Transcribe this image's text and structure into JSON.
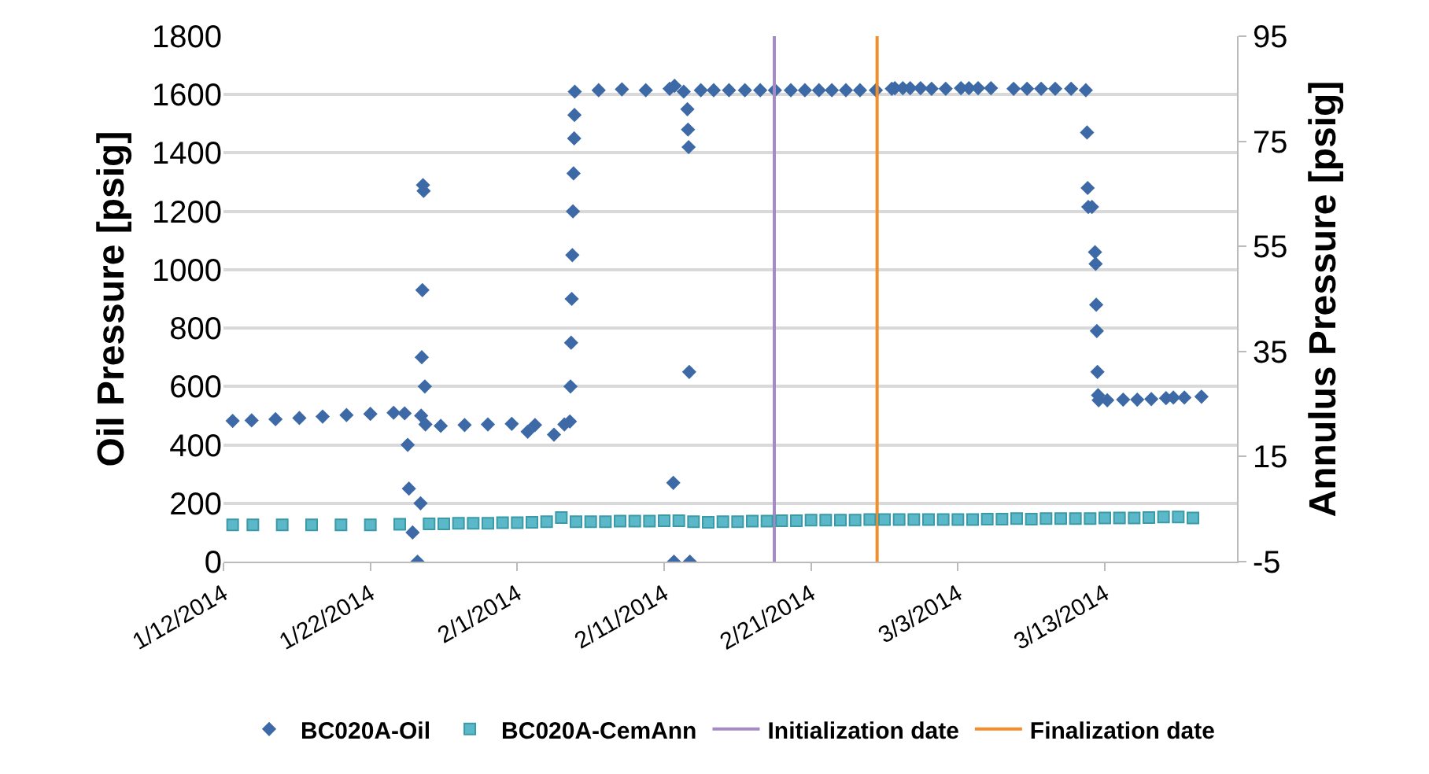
{
  "chart_data": {
    "type": "scatter",
    "ylabel": "Oil Pressure [psig]",
    "y2label": "Annulus Pressure [psig]",
    "xlim": [
      "2014-01-12",
      "2014-03-22"
    ],
    "xticks": [
      {
        "value": "2014-01-12",
        "label": "1/12/2014"
      },
      {
        "value": "2014-01-22",
        "label": "1/22/2014"
      },
      {
        "value": "2014-02-01",
        "label": "2/1/2014"
      },
      {
        "value": "2014-02-11",
        "label": "2/11/2014"
      },
      {
        "value": "2014-02-21",
        "label": "2/21/2014"
      },
      {
        "value": "2014-03-03",
        "label": "3/3/2014"
      },
      {
        "value": "2014-03-13",
        "label": "3/13/2014"
      }
    ],
    "ylim": [
      0,
      1800
    ],
    "yticks": [
      0,
      200,
      400,
      600,
      800,
      1000,
      1200,
      1400,
      1600,
      1800
    ],
    "y2lim": [
      -5,
      95
    ],
    "y2ticks": [
      -5,
      15,
      35,
      55,
      75,
      95
    ],
    "grid": "y",
    "legend": "bottom",
    "series": [
      {
        "name": "BC020A-Oil",
        "color": "#3d6aa6",
        "marker": "diamond",
        "x": [
          "2014-01-12T15:00",
          "2014-01-13T22:00",
          "2014-01-15T13:00",
          "2014-01-17T04:00",
          "2014-01-18T18:00",
          "2014-01-20T09:00",
          "2014-01-22T00:00",
          "2014-01-23T14:00",
          "2014-01-24T08:00",
          "2014-01-24T13:00",
          "2014-01-24T15:00",
          "2014-01-24T21:00",
          "2014-01-25T05:00",
          "2014-01-25T10:00",
          "2014-01-25T11:00",
          "2014-01-25T12:00",
          "2014-01-25T13:00",
          "2014-01-25T14:00",
          "2014-01-25T15:00",
          "2014-01-25T17:00",
          "2014-01-25T18:00",
          "2014-01-26T19:00",
          "2014-01-28T10:00",
          "2014-01-30T00:00",
          "2014-01-31T15:00",
          "2014-02-01T17:00",
          "2014-02-02T05:00",
          "2014-02-03T12:00",
          "2014-02-04T05:00",
          "2014-02-04T14:00",
          "2014-02-04T15:00",
          "2014-02-04T16:00",
          "2014-02-04T17:00",
          "2014-02-04T18:00",
          "2014-02-04T19:00",
          "2014-02-04T20:00",
          "2014-02-04T21:00",
          "2014-02-04T21:30",
          "2014-02-04T22:00",
          "2014-02-06T13:00",
          "2014-02-08T03:00",
          "2014-02-09T18:00",
          "2014-02-11T09:00",
          "2014-02-11T15:00",
          "2014-02-11T16:00",
          "2014-02-11T17:00",
          "2014-02-12T08:00",
          "2014-02-12T14:00",
          "2014-02-12T15:00",
          "2014-02-12T16:00",
          "2014-02-12T17:00",
          "2014-02-12T18:00",
          "2014-02-13T12:00",
          "2014-02-14T09:00",
          "2014-02-15T10:00",
          "2014-02-16T12:00",
          "2014-02-17T13:00",
          "2014-02-18T13:00",
          "2014-02-19T15:00",
          "2014-02-20T14:00",
          "2014-02-21T13:00",
          "2014-02-22T10:00",
          "2014-02-23T09:00",
          "2014-02-24T08:00",
          "2014-02-25T10:00",
          "2014-02-26T12:00",
          "2014-02-26T17:00",
          "2014-02-27T06:00",
          "2014-02-27T18:00",
          "2014-02-28T11:00",
          "2014-03-01T05:00",
          "2014-03-02T04:00",
          "2014-03-03T05:00",
          "2014-03-03T18:00",
          "2014-03-04T09:00",
          "2014-03-05T06:00",
          "2014-03-06T19:00",
          "2014-03-07T17:00",
          "2014-03-08T16:00",
          "2014-03-09T15:00",
          "2014-03-10T17:00",
          "2014-03-11T17:00",
          "2014-03-11T19:00",
          "2014-03-11T20:00",
          "2014-03-11T21:00",
          "2014-03-12T03:00",
          "2014-03-12T08:00",
          "2014-03-12T09:00",
          "2014-03-12T10:00",
          "2014-03-12T11:00",
          "2014-03-12T12:00",
          "2014-03-12T13:00",
          "2014-03-12T14:00",
          "2014-03-13T04:00",
          "2014-03-14T06:00",
          "2014-03-15T05:00",
          "2014-03-16T04:00",
          "2014-03-17T04:00",
          "2014-03-17T16:00",
          "2014-03-18T10:00",
          "2014-03-19T14:00"
        ],
        "values": [
          482,
          484,
          488,
          492,
          497,
          502,
          506,
          510,
          508,
          400,
          250,
          100,
          0,
          200,
          500,
          700,
          930,
          1290,
          1270,
          600,
          470,
          465,
          468,
          470,
          472,
          445,
          468,
          435,
          470,
          480,
          600,
          750,
          900,
          1050,
          1200,
          1330,
          1450,
          1530,
          1610,
          1615,
          1618,
          1615,
          1620,
          270,
          0,
          1630,
          1610,
          1550,
          1480,
          1420,
          650,
          0,
          1615,
          1615,
          1615,
          1615,
          1615,
          1615,
          1615,
          1615,
          1615,
          1615,
          1615,
          1615,
          1615,
          1620,
          1622,
          1622,
          1622,
          1622,
          1620,
          1620,
          1622,
          1622,
          1622,
          1622,
          1620,
          1620,
          1620,
          1620,
          1620,
          1615,
          1470,
          1280,
          1215,
          1215,
          1060,
          1020,
          880,
          790,
          650,
          570,
          553,
          553,
          555,
          555,
          557,
          560,
          562,
          562,
          565
        ]
      },
      {
        "name": "BC020A-CemAnn",
        "color": "#5bb8c8",
        "marker": "square",
        "axis": "y2",
        "x": [
          "2014-01-12T15:00",
          "2014-01-14T00:00",
          "2014-01-16T00:00",
          "2014-01-18T00:00",
          "2014-01-20T00:00",
          "2014-01-22T00:00",
          "2014-01-24T00:00",
          "2014-01-26T00:00",
          "2014-01-27T00:00",
          "2014-01-28T00:00",
          "2014-01-29T00:00",
          "2014-01-30T00:00",
          "2014-01-31T00:00",
          "2014-02-01T00:00",
          "2014-02-02T00:00",
          "2014-02-03T00:00",
          "2014-02-04T00:00",
          "2014-02-05T00:00",
          "2014-02-06T00:00",
          "2014-02-07T00:00",
          "2014-02-08T00:00",
          "2014-02-09T00:00",
          "2014-02-10T00:00",
          "2014-02-11T00:00",
          "2014-02-12T00:00",
          "2014-02-13T00:00",
          "2014-02-14T00:00",
          "2014-02-15T00:00",
          "2014-02-16T00:00",
          "2014-02-17T00:00",
          "2014-02-18T00:00",
          "2014-02-19T00:00",
          "2014-02-20T00:00",
          "2014-02-21T00:00",
          "2014-02-22T00:00",
          "2014-02-23T00:00",
          "2014-02-24T00:00",
          "2014-02-25T00:00",
          "2014-02-26T00:00",
          "2014-02-27T00:00",
          "2014-02-28T00:00",
          "2014-03-01T00:00",
          "2014-03-02T00:00",
          "2014-03-03T00:00",
          "2014-03-04T00:00",
          "2014-03-05T00:00",
          "2014-03-06T00:00",
          "2014-03-07T00:00",
          "2014-03-08T00:00",
          "2014-03-09T00:00",
          "2014-03-10T00:00",
          "2014-03-11T00:00",
          "2014-03-12T00:00",
          "2014-03-13T00:00",
          "2014-03-14T00:00",
          "2014-03-15T00:00",
          "2014-03-16T00:00",
          "2014-03-17T00:00",
          "2014-03-18T00:00",
          "2014-03-19T00:00"
        ],
        "values": [
          2.0,
          2.0,
          2.0,
          2.0,
          2.0,
          2.0,
          2.1,
          2.2,
          2.2,
          2.3,
          2.3,
          2.3,
          2.4,
          2.4,
          2.5,
          2.6,
          3.4,
          2.6,
          2.6,
          2.6,
          2.7,
          2.7,
          2.7,
          2.8,
          2.8,
          2.6,
          2.5,
          2.6,
          2.6,
          2.7,
          2.7,
          2.8,
          2.8,
          2.9,
          2.9,
          2.9,
          2.9,
          3.0,
          3.0,
          3.0,
          3.0,
          3.0,
          3.0,
          3.0,
          3.0,
          3.1,
          3.1,
          3.2,
          3.1,
          3.2,
          3.2,
          3.2,
          3.2,
          3.3,
          3.3,
          3.3,
          3.4,
          3.5,
          3.5,
          3.3
        ]
      }
    ],
    "ref_lines": [
      {
        "axis": "x",
        "value": "2014-02-18T12:00",
        "label": "Initialization date",
        "color": "#a58bc4"
      },
      {
        "axis": "x",
        "value": "2014-02-25T12:00",
        "label": "Finalization date",
        "color": "#f28e2b"
      }
    ]
  }
}
